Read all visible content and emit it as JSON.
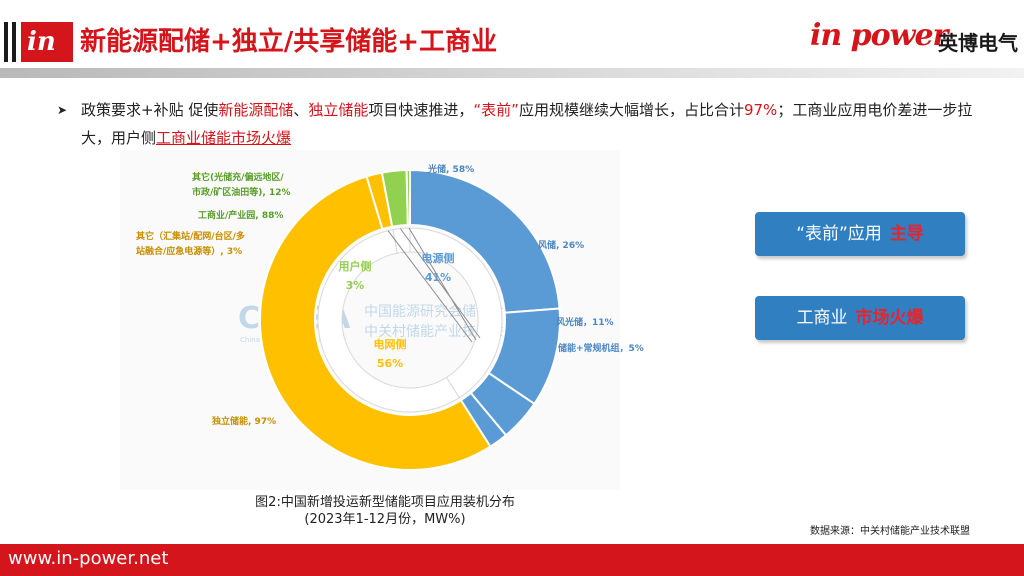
{
  "header": {
    "title": "新能源配储+独立/共享储能+工商业",
    "logo_glyph": "in",
    "brand_word": "in power",
    "brand_cn": "英博电气"
  },
  "bullet": {
    "p1": "政策要求+补贴 促使",
    "p2": "新能源配储",
    "p3": "、",
    "p4": "独立储能",
    "p5": "项目快速推进，",
    "p6": "“表前”",
    "p7": "应用规模继续大幅增长，占比合计",
    "p8": "97%",
    "p9": "；工商业应用电价差进一步拉大，用户侧",
    "p10": "工商业储能市场火爆"
  },
  "chart_data": {
    "type": "pie",
    "title": "",
    "watermark": {
      "en": "CNESA",
      "en_sub": "China Energy Storage Alliance",
      "cn1": "中国能源研究会储能专委会",
      "cn2": "中关村储能产业技术联盟"
    },
    "inner_ring": [
      {
        "label": "电源侧",
        "value": 41,
        "display": "41%",
        "color": "#5b9bd5"
      },
      {
        "label": "用户侧",
        "value": 3,
        "display": "3%",
        "color": "#92d050"
      },
      {
        "label": "电网侧",
        "value": 56,
        "display": "56%",
        "color": "#ffc000"
      }
    ],
    "outer_ring": [
      {
        "label": "光储, 58%",
        "group": "电源侧",
        "share": 58,
        "color": "#5b9bd5"
      },
      {
        "label": "风储, 26%",
        "group": "电源侧",
        "share": 26,
        "color": "#5b9bd5"
      },
      {
        "label": "风光储，11%",
        "group": "电源侧",
        "share": 11,
        "color": "#5b9bd5"
      },
      {
        "label": "储能+常规机组，5%",
        "group": "电源侧",
        "share": 5,
        "color": "#5b9bd5"
      },
      {
        "label": "工商业/产业园, 88%",
        "group": "用户侧",
        "share": 88,
        "color": "#92d050"
      },
      {
        "label": "其它(光储充/偏远地区/市政/矿区油田等), 12%",
        "label_lines": [
          "其它(光储充/偏远地区/",
          "市政/矿区油田等), 12%"
        ],
        "group": "用户侧",
        "share": 12,
        "color": "#92d050"
      },
      {
        "label": "其它（汇集站/配网/台区/多站融合/应急电源等）, 3%",
        "label_lines": [
          "其它（汇集站/配网/台区/多",
          "站融合/应急电源等）, 3%"
        ],
        "group": "电网侧",
        "share": 3,
        "color": "#ffc000"
      },
      {
        "label": "独立储能, 97%",
        "group": "电网侧",
        "share": 97,
        "color": "#ffc000"
      }
    ]
  },
  "caption": {
    "line1": "图2:中国新增投运新型储能项目应用装机分布",
    "line2": "(2023年1-12月份，MW%)"
  },
  "source": "数据来源：中关村储能产业技术联盟",
  "callouts": [
    {
      "text": "“表前”应用",
      "highlight": "主导"
    },
    {
      "text": "工商业",
      "highlight": "市场火爆"
    }
  ],
  "footer": {
    "url": "www.in-power.net"
  },
  "colors": {
    "brand_red": "#d4151b",
    "callout_blue": "#2f7fc1",
    "highlight_red": "#e8232a"
  }
}
